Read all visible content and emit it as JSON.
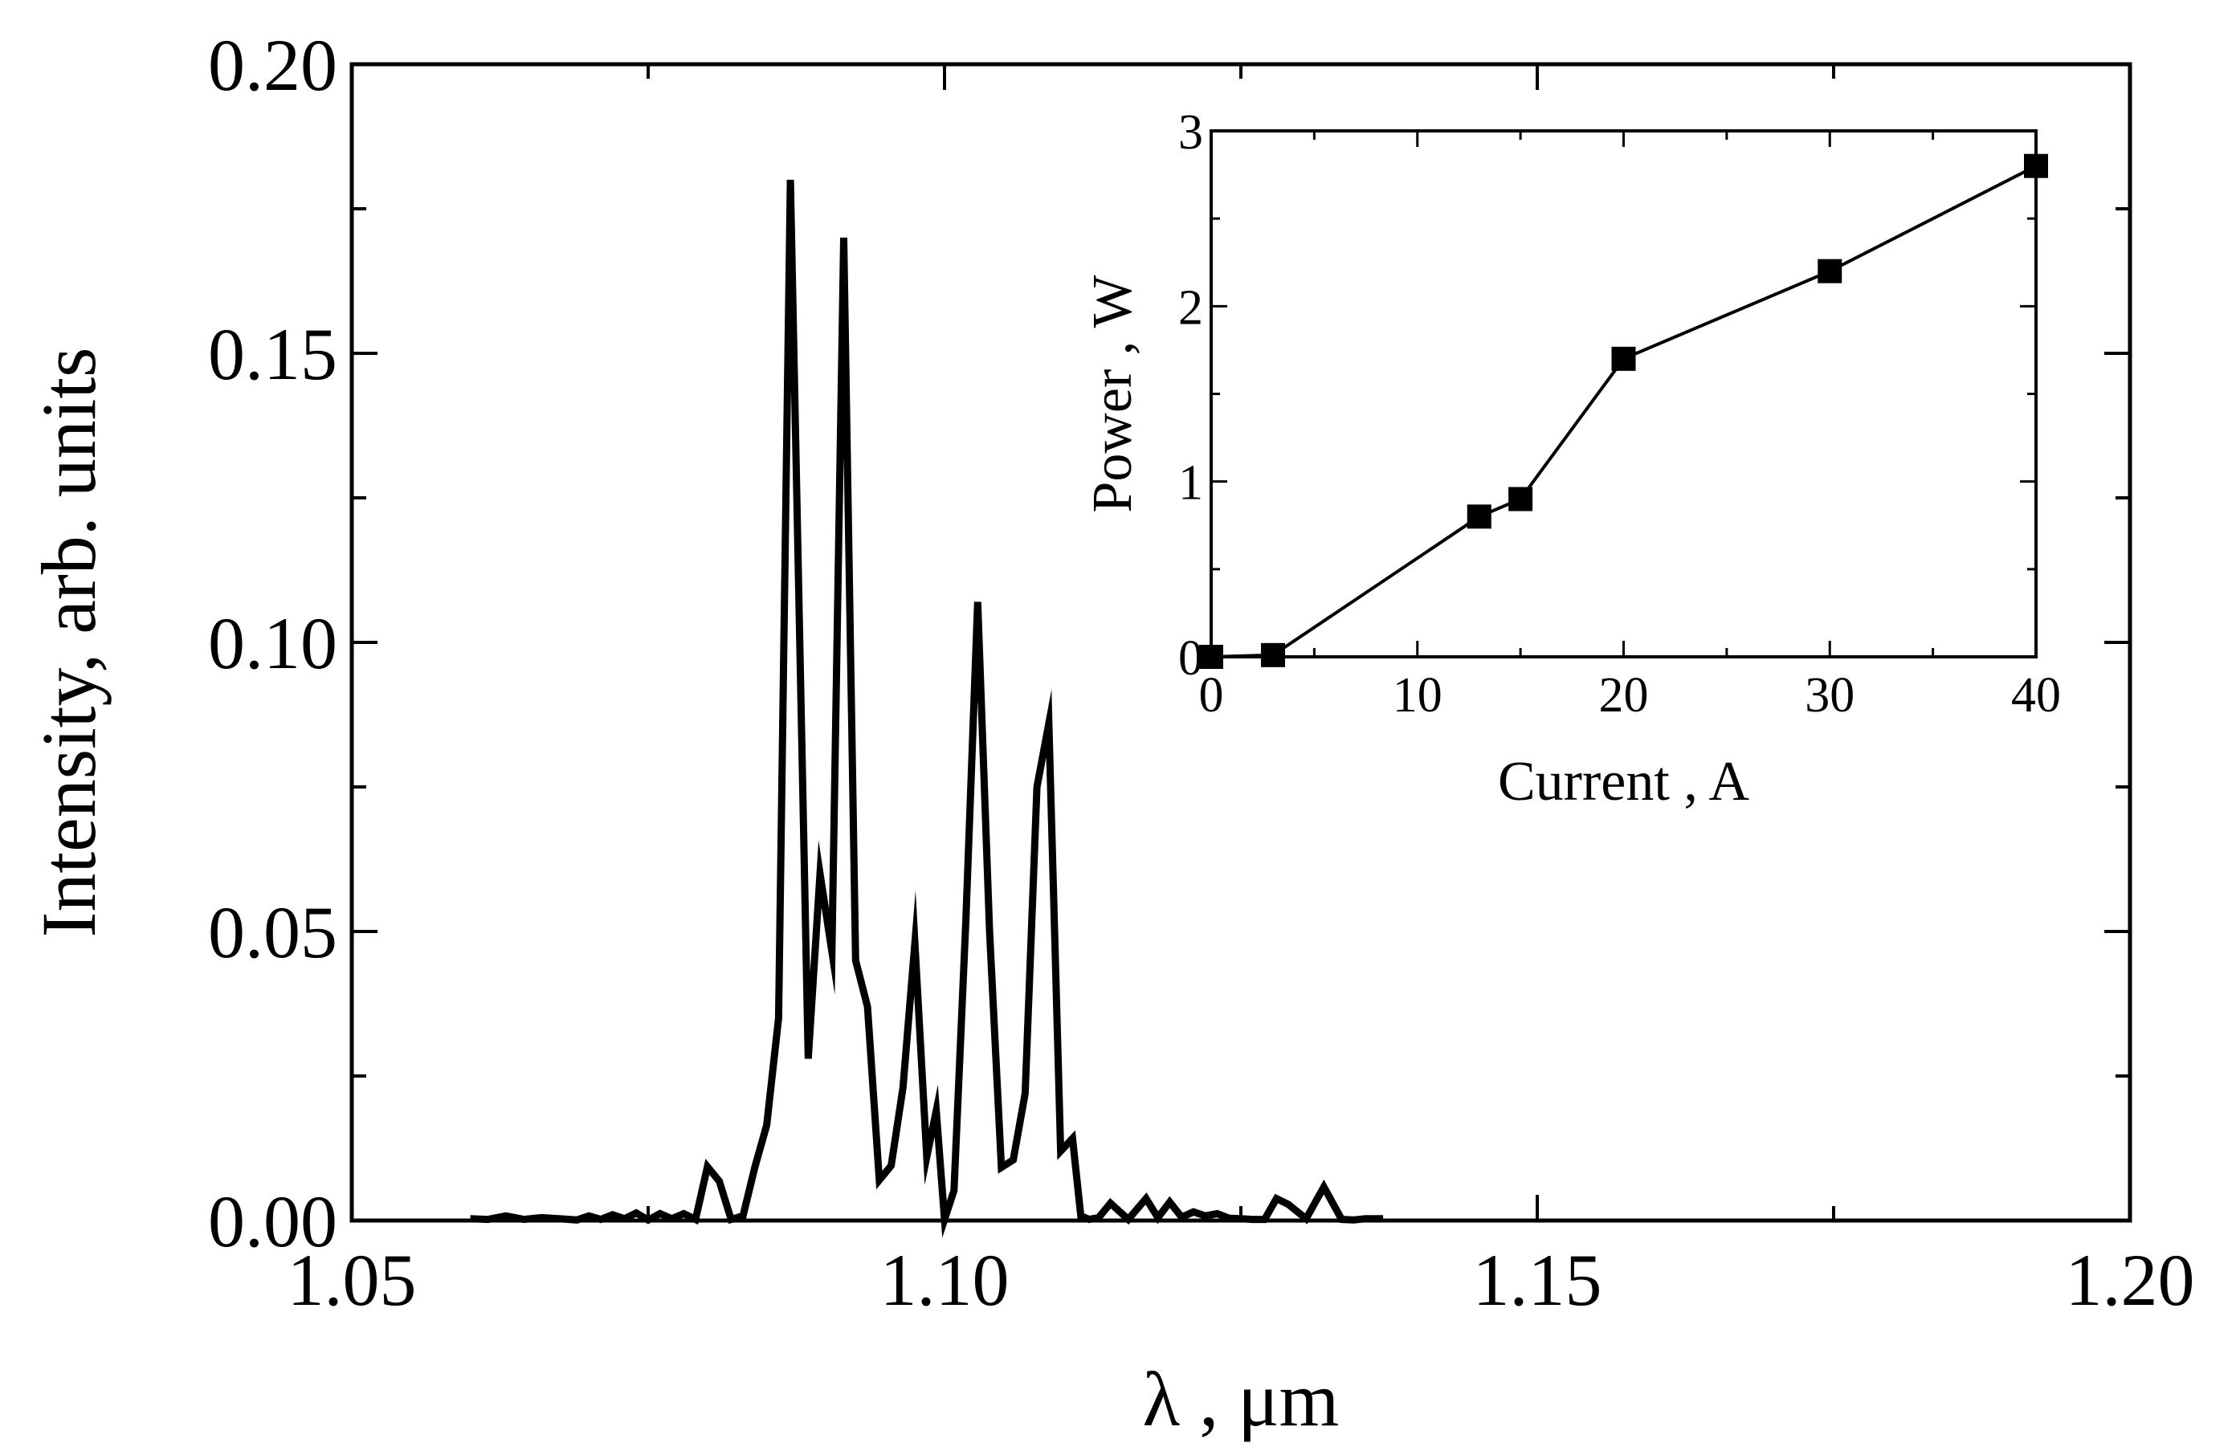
{
  "chart_data": [
    {
      "type": "line",
      "xlabel": "λ , μm",
      "ylabel": "Intensity, arb. units",
      "xlim": [
        1.05,
        1.2
      ],
      "ylim": [
        0,
        0.2
      ],
      "xticks": [
        1.05,
        1.1,
        1.15,
        1.2
      ],
      "xtick_labels": [
        "1.05",
        "1.10",
        "1.15",
        "1.20"
      ],
      "yticks": [
        0,
        0.05,
        0.1,
        0.15,
        0.2
      ],
      "ytick_labels": [
        "0.00",
        "0.05",
        "0.10",
        "0.15",
        "0.20"
      ],
      "grid": false,
      "color": "#000000",
      "series": [
        {
          "x": [
            1.06,
            1.0615,
            1.063,
            1.0645,
            1.066,
            1.0675,
            1.069,
            1.07,
            1.071,
            1.072,
            1.073,
            1.074,
            1.075,
            1.076,
            1.077,
            1.078,
            1.079,
            1.08,
            1.081,
            1.082,
            1.083,
            1.084,
            1.085,
            1.086,
            1.087,
            1.0885,
            1.0895,
            1.0905,
            1.0915,
            1.0925,
            1.0935,
            1.0945,
            1.0955,
            1.0965,
            1.0975,
            1.0985,
            1.0993,
            1.1,
            1.1008,
            1.1018,
            1.1028,
            1.1038,
            1.1048,
            1.1058,
            1.1068,
            1.1078,
            1.1088,
            1.1098,
            1.1108,
            1.1115,
            1.1122,
            1.113,
            1.114,
            1.1155,
            1.117,
            1.118,
            1.119,
            1.12,
            1.121,
            1.122,
            1.123,
            1.124,
            1.125,
            1.126,
            1.127,
            1.128,
            1.129,
            1.1305,
            1.132,
            1.1335,
            1.1345,
            1.1355,
            1.137
          ],
          "y": [
            0.0003,
            0.0002,
            0.0008,
            0.0002,
            0.0005,
            0.0003,
            0.0001,
            0.0008,
            0.0002,
            0.001,
            0.0003,
            0.0013,
            0.0001,
            0.0012,
            0.0003,
            0.0012,
            0.0002,
            0.0093,
            0.0068,
            0.0002,
            0.0008,
            0.0092,
            0.0165,
            0.035,
            0.18,
            0.028,
            0.06,
            0.0465,
            0.17,
            0.045,
            0.037,
            0.007,
            0.0095,
            0.023,
            0.048,
            0.011,
            0.019,
            0.0002,
            0.0052,
            0.052,
            0.107,
            0.05,
            0.0092,
            0.0105,
            0.022,
            0.075,
            0.086,
            0.012,
            0.0142,
            0.0008,
            0.0002,
            0.0005,
            0.003,
            0.0002,
            0.0038,
            0.0005,
            0.0032,
            0.0006,
            0.0015,
            0.0008,
            0.0012,
            0.0004,
            0.0003,
            0.0002,
            0.0002,
            0.0038,
            0.0028,
            0.0003,
            0.0058,
            0.0002,
            0.0001,
            0.0003,
            0.0003
          ]
        }
      ]
    },
    {
      "type": "line",
      "xlabel": "Current , A",
      "ylabel": "Power , W",
      "xlim": [
        0,
        40
      ],
      "ylim": [
        0,
        3
      ],
      "xticks": [
        0,
        10,
        20,
        30,
        40
      ],
      "xtick_labels": [
        "0",
        "10",
        "20",
        "30",
        "40"
      ],
      "yticks": [
        0,
        1,
        2,
        3
      ],
      "ytick_labels": [
        "0",
        "1",
        "2",
        "3"
      ],
      "grid": false,
      "color": "#000000",
      "series": [
        {
          "x": [
            0,
            3,
            13,
            15,
            20,
            30,
            40
          ],
          "y": [
            0,
            0.01,
            0.8,
            0.9,
            1.7,
            2.2,
            2.8
          ],
          "marker": "square"
        }
      ]
    }
  ]
}
